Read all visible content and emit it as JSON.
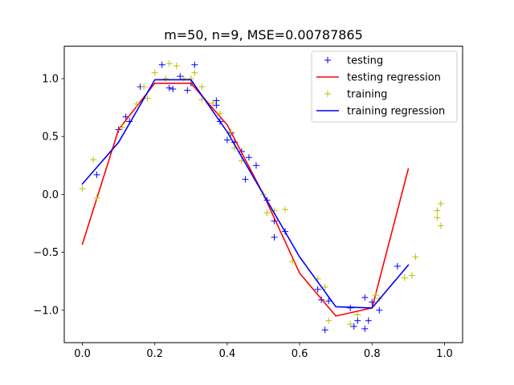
{
  "chart_data": {
    "type": "scatter",
    "title": "m=50, n=9, MSE=0.00787865",
    "xlabel": "",
    "ylabel": "",
    "xlim": [
      -0.05,
      1.05
    ],
    "ylim": [
      -1.28,
      1.28
    ],
    "xticks": [
      0.0,
      0.2,
      0.4,
      0.6,
      0.8,
      1.0
    ],
    "xtick_labels": [
      "0.0",
      "0.2",
      "0.4",
      "0.6",
      "0.8",
      "1.0"
    ],
    "yticks": [
      -1.0,
      -0.5,
      0.0,
      0.5,
      1.0
    ],
    "ytick_labels": [
      "−1.0",
      "−0.5",
      "0.0",
      "0.5",
      "1.0"
    ],
    "grid": false,
    "legend_location": "upper right",
    "series": [
      {
        "name": "testing",
        "kind": "marker",
        "marker": "+",
        "color": "#0000ff",
        "points": [
          [
            0.04,
            0.17
          ],
          [
            0.1,
            0.56
          ],
          [
            0.12,
            0.67
          ],
          [
            0.13,
            0.63
          ],
          [
            0.16,
            0.93
          ],
          [
            0.22,
            1.12
          ],
          [
            0.24,
            0.92
          ],
          [
            0.25,
            0.91
          ],
          [
            0.27,
            1.02
          ],
          [
            0.29,
            0.9
          ],
          [
            0.3,
            0.96
          ],
          [
            0.31,
            1.12
          ],
          [
            0.37,
            0.81
          ],
          [
            0.37,
            0.77
          ],
          [
            0.38,
            0.63
          ],
          [
            0.4,
            0.47
          ],
          [
            0.41,
            0.53
          ],
          [
            0.42,
            0.45
          ],
          [
            0.44,
            0.37
          ],
          [
            0.45,
            0.13
          ],
          [
            0.46,
            0.32
          ],
          [
            0.48,
            0.25
          ],
          [
            0.51,
            -0.05
          ],
          [
            0.53,
            -0.23
          ],
          [
            0.53,
            -0.37
          ],
          [
            0.56,
            -0.32
          ],
          [
            0.65,
            -0.82
          ],
          [
            0.66,
            -0.91
          ],
          [
            0.67,
            -1.17
          ],
          [
            0.68,
            -0.92
          ],
          [
            0.74,
            -0.98
          ],
          [
            0.75,
            -1.14
          ],
          [
            0.76,
            -1.09
          ],
          [
            0.78,
            -1.16
          ],
          [
            0.78,
            -0.89
          ],
          [
            0.79,
            -1.09
          ],
          [
            0.8,
            -0.93
          ],
          [
            0.82,
            -1.0
          ],
          [
            0.87,
            -0.62
          ]
        ]
      },
      {
        "name": "testing regression",
        "kind": "line",
        "color": "#ff0000",
        "points": [
          [
            0.0,
            -0.43
          ],
          [
            0.1,
            0.56
          ],
          [
            0.2,
            0.96
          ],
          [
            0.3,
            0.96
          ],
          [
            0.4,
            0.6
          ],
          [
            0.5,
            0.0
          ],
          [
            0.6,
            -0.68
          ],
          [
            0.7,
            -1.05
          ],
          [
            0.8,
            -0.98
          ],
          [
            0.9,
            0.22
          ]
        ]
      },
      {
        "name": "training",
        "kind": "marker",
        "marker": "+",
        "color": "#bfbf00",
        "points": [
          [
            0.0,
            0.05
          ],
          [
            0.03,
            0.3
          ],
          [
            0.04,
            -0.03
          ],
          [
            0.11,
            0.58
          ],
          [
            0.15,
            0.78
          ],
          [
            0.17,
            0.93
          ],
          [
            0.18,
            0.83
          ],
          [
            0.2,
            1.05
          ],
          [
            0.23,
            1.0
          ],
          [
            0.24,
            1.13
          ],
          [
            0.26,
            1.11
          ],
          [
            0.28,
            1.0
          ],
          [
            0.3,
            1.0
          ],
          [
            0.31,
            1.05
          ],
          [
            0.33,
            0.93
          ],
          [
            0.33,
            0.82
          ],
          [
            0.36,
            0.79
          ],
          [
            0.38,
            0.7
          ],
          [
            0.41,
            0.54
          ],
          [
            0.42,
            0.4
          ],
          [
            0.44,
            0.29
          ],
          [
            0.5,
            0.0
          ],
          [
            0.51,
            -0.16
          ],
          [
            0.53,
            -0.14
          ],
          [
            0.56,
            -0.13
          ],
          [
            0.58,
            -0.58
          ],
          [
            0.65,
            -0.73
          ],
          [
            0.67,
            -0.8
          ],
          [
            0.68,
            -1.09
          ],
          [
            0.74,
            -1.12
          ],
          [
            0.76,
            -1.04
          ],
          [
            0.81,
            -0.87
          ],
          [
            0.82,
            -0.9
          ],
          [
            0.89,
            -0.72
          ],
          [
            0.91,
            -0.7
          ],
          [
            0.92,
            -0.54
          ],
          [
            0.98,
            -0.2
          ],
          [
            0.98,
            -0.14
          ],
          [
            0.99,
            -0.27
          ],
          [
            0.99,
            -0.08
          ]
        ]
      },
      {
        "name": "training regression",
        "kind": "line",
        "color": "#0000ff",
        "points": [
          [
            0.0,
            0.09
          ],
          [
            0.1,
            0.45
          ],
          [
            0.2,
            0.99
          ],
          [
            0.3,
            0.99
          ],
          [
            0.4,
            0.54
          ],
          [
            0.5,
            0.0
          ],
          [
            0.6,
            -0.54
          ],
          [
            0.7,
            -0.97
          ],
          [
            0.8,
            -0.98
          ],
          [
            0.9,
            -0.61
          ]
        ]
      }
    ]
  }
}
